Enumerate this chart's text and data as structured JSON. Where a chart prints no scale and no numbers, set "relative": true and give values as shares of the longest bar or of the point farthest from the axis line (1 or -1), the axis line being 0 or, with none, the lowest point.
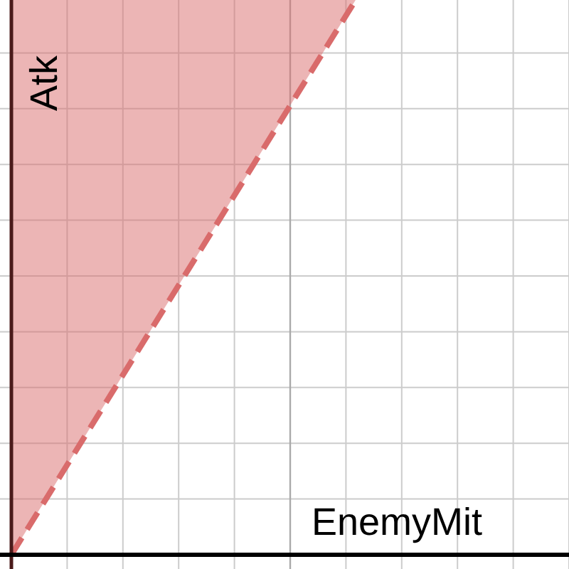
{
  "chart_data": {
    "type": "line",
    "xlabel": "EnemyMit",
    "ylabel": "Atk",
    "relative": true,
    "grid": true,
    "categories": [
      null,
      null
    ],
    "series": [
      {
        "color": "#d96b6b",
        "values": [
          0,
          1
        ],
        "lower": [
          0,
          1
        ],
        "upper": [
          1,
          1
        ],
        "line_style": "dashed"
      }
    ]
  }
}
